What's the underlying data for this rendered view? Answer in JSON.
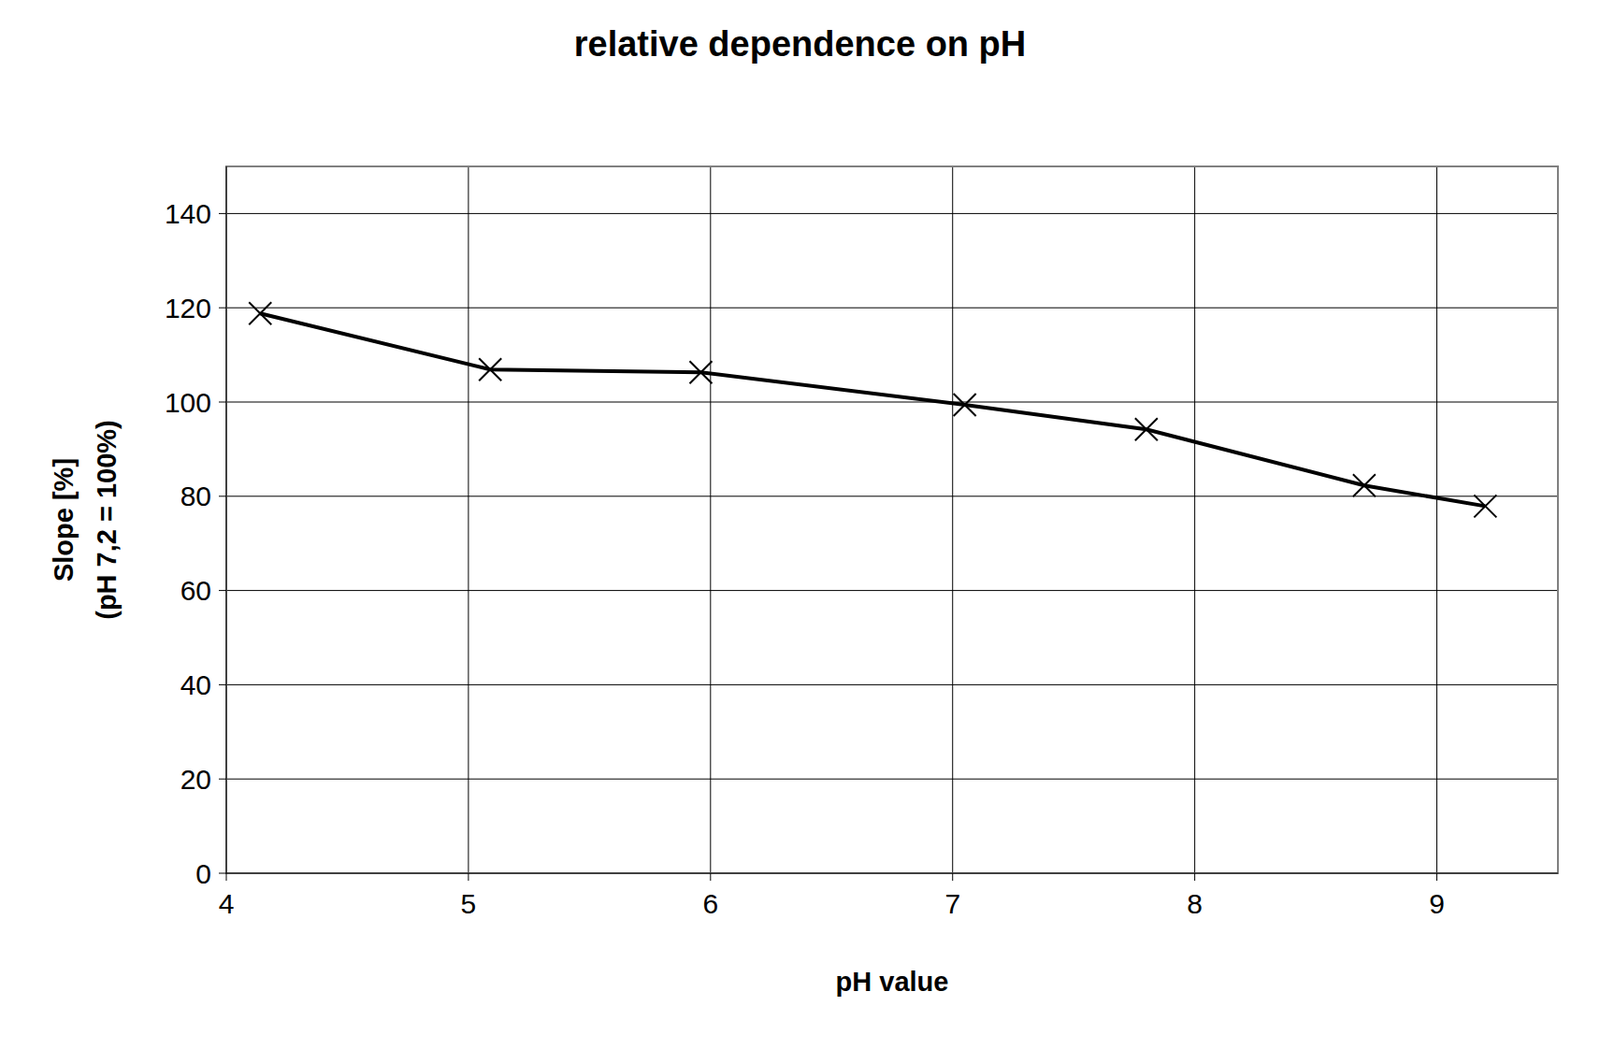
{
  "chart_data": {
    "type": "line",
    "title": "relative dependence on pH",
    "x_label": "pH value",
    "y_label": [
      "Slope [%]",
      "(pH 7,2 = 100%)"
    ],
    "x": [
      4.14,
      5.09,
      5.96,
      7.05,
      7.8,
      8.7,
      9.2
    ],
    "series": [
      {
        "name": "Slope",
        "color": "#000000",
        "marker": "x",
        "line_style": "solid",
        "values": [
          118.8,
          106.9,
          106.3,
          99.4,
          94.2,
          82.3,
          77.9
        ]
      }
    ],
    "xlim": [
      4,
      9.5
    ],
    "xticks": [
      4,
      5,
      6,
      7,
      8,
      9
    ],
    "ylim": [
      0,
      150
    ],
    "yticks": [
      0,
      20,
      40,
      60,
      80,
      100,
      120,
      140
    ],
    "grid": true
  }
}
